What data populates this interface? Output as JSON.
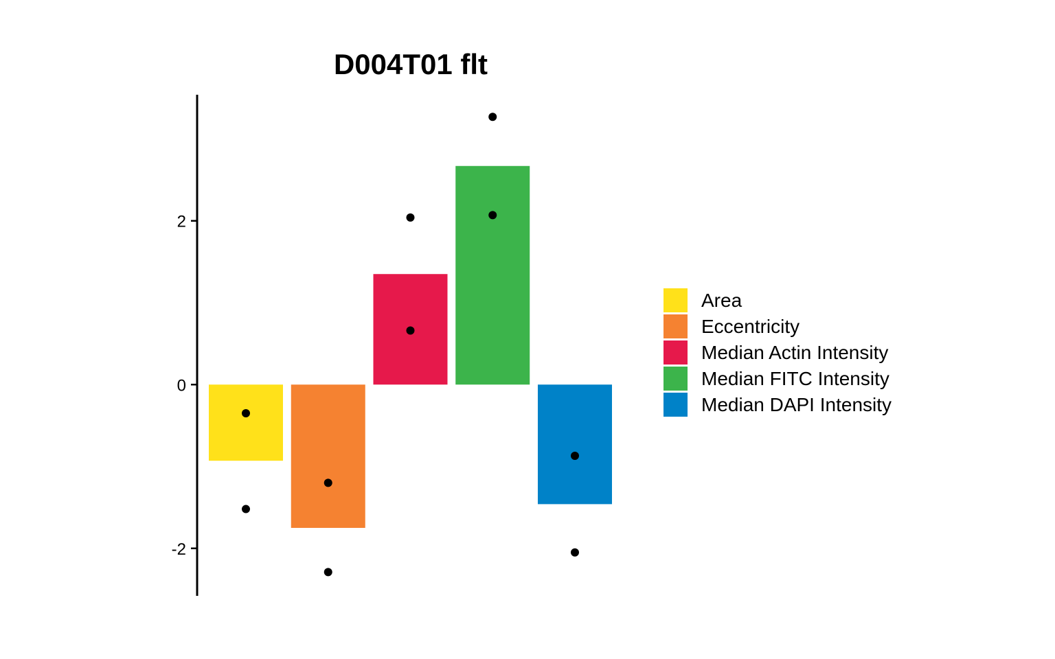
{
  "chart_data": {
    "type": "bar",
    "title": "D004T01 flt",
    "xlabel": "",
    "ylabel": "",
    "categories": [
      "Area",
      "Eccentricity",
      "Median Actin Intensity",
      "Median FITC Intensity",
      "Median DAPI Intensity"
    ],
    "values": [
      -0.93,
      -1.75,
      1.35,
      2.67,
      -1.46
    ],
    "points": [
      [
        -0.35,
        -1.52
      ],
      [
        -1.2,
        -2.29
      ],
      [
        2.04,
        0.66
      ],
      [
        3.27,
        2.07
      ],
      [
        -0.87,
        -2.05
      ]
    ],
    "colors": [
      "#FFE11A",
      "#F58231",
      "#E6194B",
      "#3CB44B",
      "#0082C8"
    ],
    "yticks": [
      -2,
      0,
      2
    ],
    "ytick_labels": [
      "-2",
      "0",
      "2"
    ],
    "ylim": [
      -2.58,
      3.54
    ],
    "legend": {
      "position": "right",
      "entries": [
        "Area",
        "Eccentricity",
        "Median Actin Intensity",
        "Median FITC Intensity",
        "Median DAPI Intensity"
      ]
    },
    "grid": false
  }
}
